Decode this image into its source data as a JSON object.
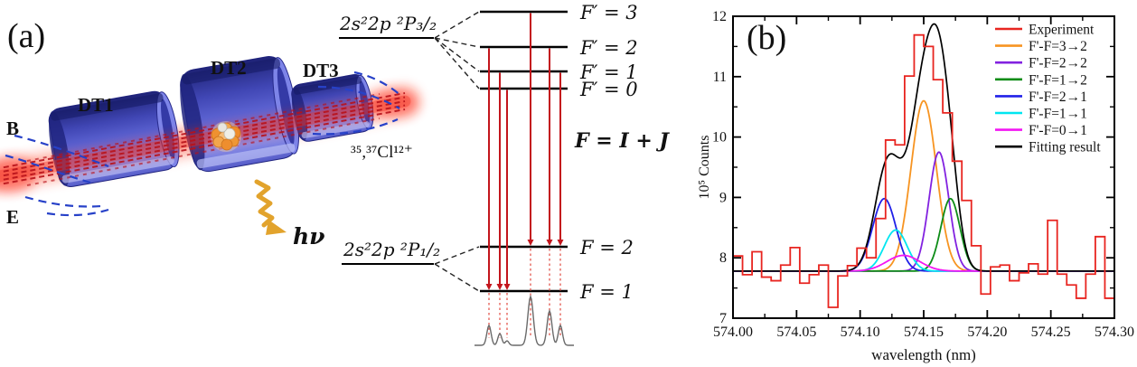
{
  "panel_a": {
    "label": "(a)",
    "drift_tubes": [
      "DT1",
      "DT2",
      "DT3"
    ],
    "field_labels": {
      "magnetic": "B",
      "electric": "E"
    },
    "ion_label": "³⁵,³⁷Cl¹²⁺",
    "photon_label": "hν",
    "colors": {
      "tube_blue": "#5a61d4",
      "beam_red": "#ee1a10",
      "b_field_blue": "#2741c8",
      "e_label_red": "#d6201c",
      "photon_orange": "#e8a41f"
    },
    "level_diagram": {
      "upper_term": "2s²2p ²P₃/₂",
      "lower_term": "2s²2p ²P₁/₂",
      "coupling_label": "F = I + J",
      "upper_levels": [
        {
          "name": "F′ = 3",
          "F": 3
        },
        {
          "name": "F′ = 2",
          "F": 2
        },
        {
          "name": "F′ = 1",
          "F": 1
        },
        {
          "name": "F′ = 0",
          "F": 0
        }
      ],
      "lower_levels": [
        {
          "name": "F = 2",
          "F": 2
        },
        {
          "name": "F = 1",
          "F": 1
        }
      ],
      "transitions": [
        {
          "upper": 2,
          "lower": 1,
          "intensity": 22
        },
        {
          "upper": 1,
          "lower": 1,
          "intensity": 13
        },
        {
          "upper": 0,
          "lower": 1,
          "intensity": 5
        },
        {
          "upper": 3,
          "lower": 2,
          "intensity": 54
        },
        {
          "upper": 2,
          "lower": 2,
          "intensity": 38
        },
        {
          "upper": 1,
          "lower": 2,
          "intensity": 22
        }
      ]
    }
  },
  "panel_b": {
    "label": "(b)",
    "chart_data": {
      "type": "line",
      "xlabel": "wavelength (nm)",
      "ylabel": "10⁵ Counts",
      "xlim": [
        574.0,
        574.3
      ],
      "ylim": [
        7,
        12
      ],
      "grid": false,
      "legend_position": "top-right",
      "xticks": {
        "values": [
          574.0,
          574.05,
          574.1,
          574.15,
          574.2,
          574.25,
          574.3
        ],
        "labels": [
          "574.00",
          "574.05",
          "574.10",
          "574.15",
          "574.20",
          "574.25",
          "574.30"
        ]
      },
      "xticks_minor": [
        574.025,
        574.075,
        574.125,
        574.175,
        574.225,
        574.275
      ],
      "yticks": {
        "values": [
          7,
          8,
          9,
          10,
          11,
          12
        ],
        "labels": [
          "7",
          "8",
          "9",
          "10",
          "11",
          "12"
        ]
      },
      "yticks_minor": [
        7.5,
        8.5,
        9.5,
        10.5,
        11.5
      ],
      "baseline": 7.78,
      "experiment": {
        "label": "Experiment",
        "color": "#e82520",
        "bin_start": 574.0,
        "bin_width": 0.0075,
        "counts": [
          8.03,
          7.72,
          8.1,
          7.68,
          7.62,
          7.88,
          8.17,
          7.58,
          7.72,
          7.88,
          7.18,
          7.7,
          7.87,
          8.16,
          8.0,
          8.65,
          9.95,
          9.87,
          11.01,
          11.69,
          11.5,
          10.95,
          10.4,
          9.6,
          8.95,
          8.2,
          7.4,
          7.85,
          7.88,
          7.62,
          7.75,
          7.9,
          7.73,
          8.62,
          7.73,
          7.55,
          7.33,
          7.73,
          8.35,
          7.33
        ]
      },
      "components": [
        {
          "label": "F'-F=3→2",
          "color": "#f79421",
          "center": 574.15,
          "sigma": 0.01,
          "amplitude": 2.82
        },
        {
          "label": "F'-F=2→2",
          "color": "#8222e0",
          "center": 574.162,
          "sigma": 0.0078,
          "amplitude": 1.97
        },
        {
          "label": "F'-F=1→2",
          "color": "#0d8c17",
          "center": 574.171,
          "sigma": 0.0075,
          "amplitude": 1.2
        },
        {
          "label": "F'-F=2→1",
          "color": "#2020e8",
          "center": 574.119,
          "sigma": 0.0092,
          "amplitude": 1.2
        },
        {
          "label": "F'-F=1→1",
          "color": "#00e6f0",
          "center": 574.128,
          "sigma": 0.009,
          "amplitude": 0.68
        },
        {
          "label": "F'-F=0→1",
          "color": "#f316f3",
          "center": 574.134,
          "sigma": 0.013,
          "amplitude": 0.26
        }
      ],
      "fit": {
        "label": "Fitting result",
        "color": "#000000"
      }
    }
  }
}
